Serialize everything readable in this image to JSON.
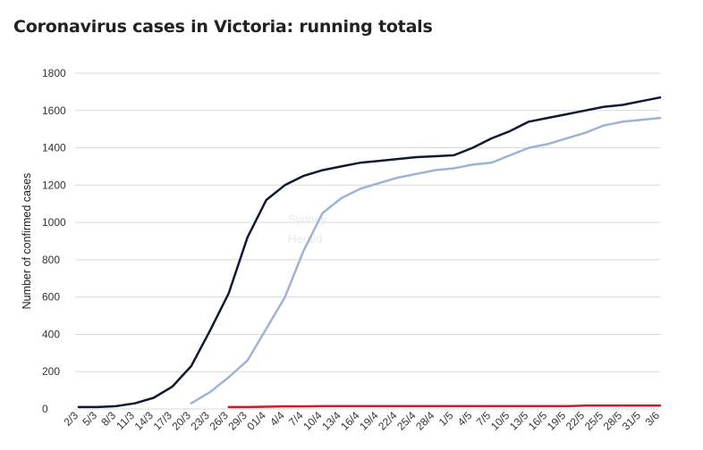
{
  "chart_data": {
    "type": "line",
    "title": "Coronavirus cases in Victoria: running totals",
    "xlabel": "",
    "ylabel": "Number of confirmed cases",
    "ylim": [
      0,
      1800
    ],
    "yticks": [
      0,
      200,
      400,
      600,
      800,
      1000,
      1200,
      1400,
      1600,
      1800
    ],
    "grid": true,
    "x": [
      "2/3",
      "5/3",
      "8/3",
      "11/3",
      "14/3",
      "17/3",
      "20/3",
      "23/3",
      "26/3",
      "29/3",
      "01/4",
      "4/4",
      "7/4",
      "10/4",
      "13/4",
      "16/4",
      "19/4",
      "22/4",
      "25/4",
      "28/4",
      "1/5",
      "4/5",
      "7/5",
      "10/5",
      "13/5",
      "16/5",
      "19/5",
      "22/5",
      "25/5",
      "28/5",
      "31/5",
      "3/6"
    ],
    "series": [
      {
        "color": "#0e1a33",
        "values": [
          10,
          10,
          15,
          30,
          60,
          120,
          230,
          420,
          620,
          920,
          1120,
          1200,
          1250,
          1280,
          1300,
          1320,
          1330,
          1340,
          1350,
          1355,
          1360,
          1400,
          1450,
          1490,
          1540,
          1560,
          1580,
          1600,
          1620,
          1630,
          1650,
          1670
        ]
      },
      {
        "color": "#9db3d6",
        "values": [
          null,
          null,
          null,
          null,
          null,
          null,
          30,
          90,
          170,
          260,
          430,
          600,
          850,
          1050,
          1130,
          1180,
          1210,
          1240,
          1260,
          1280,
          1290,
          1310,
          1320,
          1360,
          1400,
          1420,
          1450,
          1480,
          1520,
          1540,
          1550,
          1560
        ]
      },
      {
        "color": "#d0192b",
        "values": [
          null,
          null,
          null,
          null,
          null,
          null,
          null,
          null,
          10,
          10,
          12,
          14,
          14,
          15,
          15,
          15,
          15,
          15,
          15,
          15,
          15,
          15,
          15,
          15,
          15,
          15,
          15,
          18,
          18,
          18,
          18,
          18
        ]
      }
    ]
  }
}
